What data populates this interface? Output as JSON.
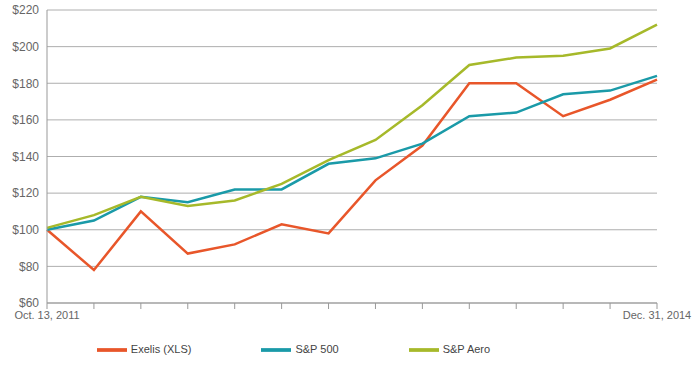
{
  "chart_data": {
    "type": "line",
    "categories": [
      "Oct. 13, 2011",
      null,
      null,
      null,
      null,
      null,
      null,
      null,
      null,
      null,
      null,
      null,
      null,
      "Dec. 31, 2014"
    ],
    "series": [
      {
        "name": "Exelis (XLS)",
        "color": "#e8562a",
        "values": [
          100,
          78,
          110,
          87,
          92,
          103,
          98,
          127,
          146,
          180,
          180,
          162,
          171,
          182
        ]
      },
      {
        "name": "S&P 500",
        "color": "#1a9aa8",
        "values": [
          100,
          105,
          118,
          115,
          122,
          122,
          136,
          139,
          147,
          162,
          164,
          174,
          176,
          184
        ]
      },
      {
        "name": "S&P Aero",
        "color": "#a6b92a",
        "values": [
          101,
          108,
          118,
          113,
          116,
          125,
          138,
          149,
          168,
          190,
          194,
          195,
          199,
          212
        ]
      }
    ],
    "ylim": [
      60,
      220
    ],
    "yticks": [
      {
        "value": 60,
        "label": "$60"
      },
      {
        "value": 80,
        "label": "$80"
      },
      {
        "value": 100,
        "label": "$100"
      },
      {
        "value": 120,
        "label": "$120"
      },
      {
        "value": 140,
        "label": "$140"
      },
      {
        "value": 160,
        "label": "$160"
      },
      {
        "value": 180,
        "label": "$180"
      },
      {
        "value": 200,
        "label": "$200"
      },
      {
        "value": 220,
        "label": "$220"
      }
    ],
    "grid": true,
    "legend": "bottom"
  }
}
